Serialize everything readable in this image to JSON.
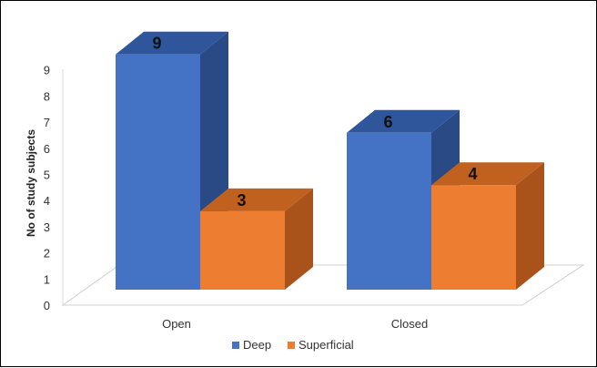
{
  "chart_data": {
    "type": "bar",
    "categories": [
      "Open",
      "Closed"
    ],
    "series": [
      {
        "name": "Deep",
        "values": [
          9,
          6
        ],
        "color": "#4472C4",
        "top_color": "#2F559A",
        "side_color": "#2A4A85"
      },
      {
        "name": "Superficial",
        "values": [
          3,
          4
        ],
        "color": "#ED7D31",
        "top_color": "#C0611F",
        "side_color": "#A9521A"
      }
    ],
    "title": "",
    "xlabel": "",
    "ylabel": "No of study subjects",
    "ylim": [
      0,
      9
    ],
    "yticks": [
      0,
      1,
      2,
      3,
      4,
      5,
      6,
      7,
      8,
      9
    ],
    "legend_position": "bottom",
    "data_labels": true,
    "grid": false,
    "style": "3d-clustered-column"
  }
}
